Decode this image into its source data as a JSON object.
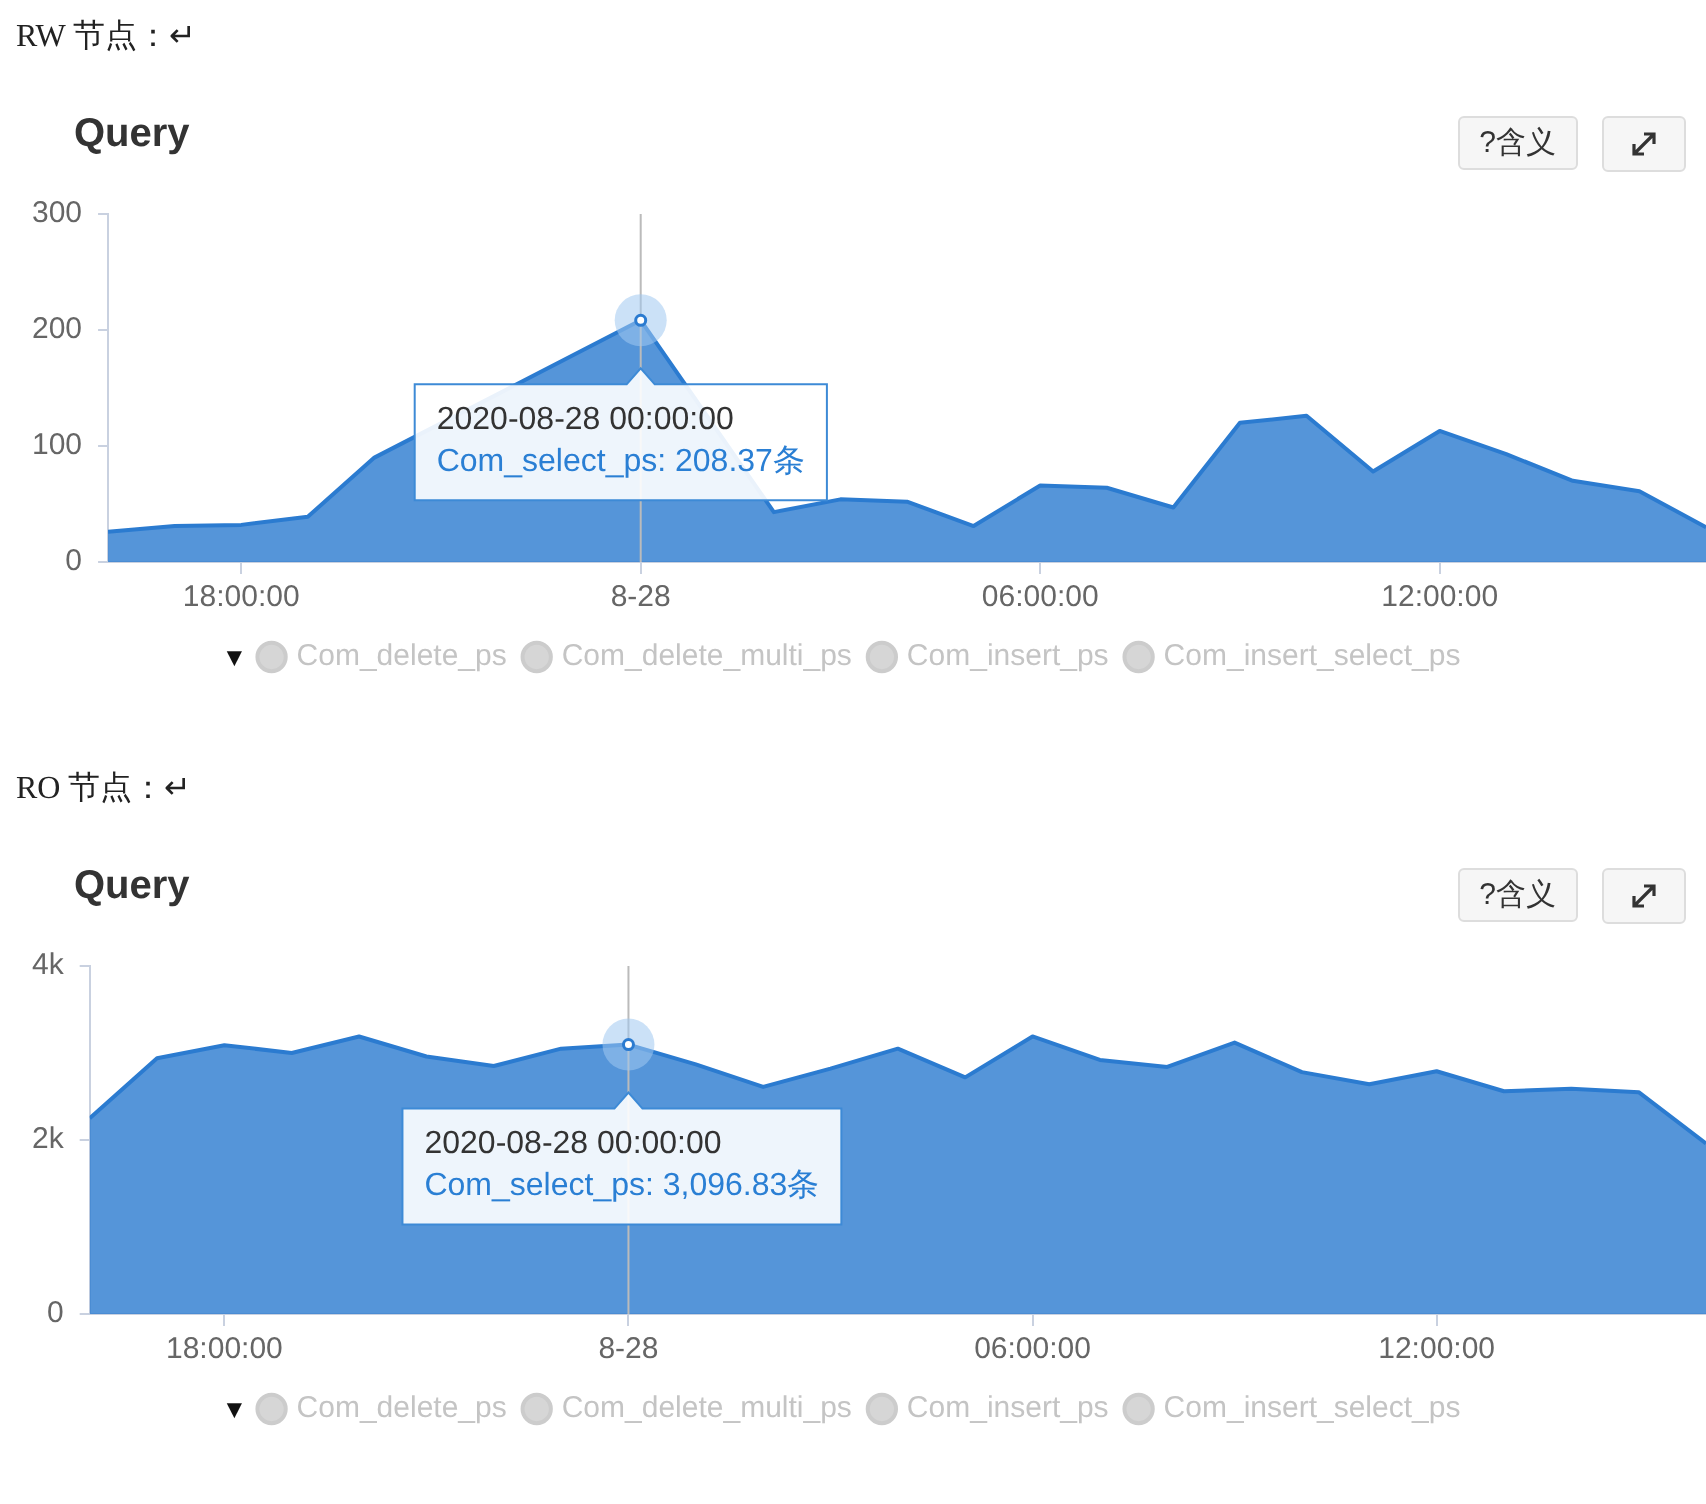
{
  "chart_data": [
    {
      "type": "area",
      "subtitle": "RW 节点：↵",
      "title": "Query",
      "legend": "bottom",
      "marker": "none",
      "grid": false,
      "x": [
        "2020-08-27T16:00",
        "2020-08-27T17:00",
        "2020-08-27T18:00",
        "2020-08-27T19:00",
        "2020-08-27T20:00",
        "2020-08-27T21:00",
        "2020-08-27T22:00",
        "2020-08-27T23:00",
        "2020-08-28T00:00",
        "2020-08-28T01:00",
        "2020-08-28T02:00",
        "2020-08-28T03:00",
        "2020-08-28T04:00",
        "2020-08-28T05:00",
        "2020-08-28T06:00",
        "2020-08-28T07:00",
        "2020-08-28T08:00",
        "2020-08-28T09:00",
        "2020-08-28T10:00",
        "2020-08-28T11:00",
        "2020-08-28T12:00",
        "2020-08-28T13:00",
        "2020-08-28T14:00",
        "2020-08-28T15:00",
        "2020-08-28T16:00"
      ],
      "xlim": [
        "2020-08-27T16:00",
        "2020-08-28T16:00"
      ],
      "xticks": [
        {
          "value": "2020-08-27T18:00",
          "label": "18:00:00"
        },
        {
          "value": "2020-08-28T00:00",
          "label": "8-28"
        },
        {
          "value": "2020-08-28T06:00",
          "label": "06:00:00"
        },
        {
          "value": "2020-08-28T12:00",
          "label": "12:00:00"
        }
      ],
      "ylim": [
        0,
        300
      ],
      "yticks": [
        0,
        100,
        200,
        300
      ],
      "series": [
        {
          "color": "#2b7bd0",
          "values": [
            26,
            31,
            32,
            39,
            90,
            null,
            null,
            null,
            208.37,
            null,
            43,
            54,
            52,
            31,
            66,
            64,
            47,
            120,
            126,
            78,
            113,
            93,
            70,
            61,
            30
          ]
        },
        {
          "name": "Com_delete_ps",
          "color": "#cccccc",
          "values": [
            null,
            null,
            null,
            null,
            null,
            null,
            null,
            null,
            null,
            null,
            null,
            null,
            null,
            null,
            null,
            null,
            null,
            null,
            null,
            null,
            null,
            null,
            null,
            null,
            null
          ]
        },
        {
          "name": "Com_delete_multi_ps",
          "color": "#cccccc",
          "values": [
            null,
            null,
            null,
            null,
            null,
            null,
            null,
            null,
            null,
            null,
            null,
            null,
            null,
            null,
            null,
            null,
            null,
            null,
            null,
            null,
            null,
            null,
            null,
            null,
            null
          ]
        },
        {
          "name": "Com_insert_ps",
          "color": "#cccccc",
          "values": [
            null,
            null,
            null,
            null,
            null,
            null,
            null,
            null,
            null,
            null,
            null,
            null,
            null,
            null,
            null,
            null,
            null,
            null,
            null,
            null,
            null,
            null,
            null,
            null,
            null
          ]
        },
        {
          "name": "Com_insert_select_ps",
          "color": "#cccccc",
          "values": [
            null,
            null,
            null,
            null,
            null,
            null,
            null,
            null,
            null,
            null,
            null,
            null,
            null,
            null,
            null,
            null,
            null,
            null,
            null,
            null,
            null,
            null,
            null,
            null,
            null
          ]
        }
      ],
      "ref_lines": [
        {
          "axis": "x",
          "value": "2020-08-28T00:00",
          "color": "#bbbbbb"
        }
      ],
      "annotations": [
        "?含义",
        "▼",
        {
          "text": "2020-08-28 00:00:00\nCom_select_ps: 208.37条",
          "x": "2020-08-28T00:00",
          "y": 208.37
        }
      ]
    },
    {
      "type": "area",
      "subtitle": "RO 节点：↵",
      "title": "Query",
      "legend": "bottom",
      "marker": "none",
      "grid": false,
      "x": [
        "2020-08-27T16:00",
        "2020-08-27T17:00",
        "2020-08-27T18:00",
        "2020-08-27T19:00",
        "2020-08-27T20:00",
        "2020-08-27T21:00",
        "2020-08-27T22:00",
        "2020-08-27T23:00",
        "2020-08-28T00:00",
        "2020-08-28T01:00",
        "2020-08-28T02:00",
        "2020-08-28T03:00",
        "2020-08-28T04:00",
        "2020-08-28T05:00",
        "2020-08-28T06:00",
        "2020-08-28T07:00",
        "2020-08-28T08:00",
        "2020-08-28T09:00",
        "2020-08-28T10:00",
        "2020-08-28T11:00",
        "2020-08-28T12:00",
        "2020-08-28T13:00",
        "2020-08-28T14:00",
        "2020-08-28T15:00",
        "2020-08-28T16:00"
      ],
      "xlim": [
        "2020-08-27T16:00",
        "2020-08-28T16:00"
      ],
      "xticks": [
        {
          "value": "2020-08-27T18:00",
          "label": "18:00:00"
        },
        {
          "value": "2020-08-28T00:00",
          "label": "8-28"
        },
        {
          "value": "2020-08-28T06:00",
          "label": "06:00:00"
        },
        {
          "value": "2020-08-28T12:00",
          "label": "12:00:00"
        }
      ],
      "ylim": [
        0,
        4000
      ],
      "yticks": [
        0,
        {
          "value": 2000,
          "label": "2k"
        },
        {
          "value": 4000,
          "label": "4k"
        }
      ],
      "series": [
        {
          "color": "#2b7bd0",
          "values": [
            2250,
            2940,
            3090,
            3000,
            3190,
            2960,
            2850,
            3050,
            3096.83,
            2870,
            2610,
            2820,
            3050,
            2720,
            3190,
            2920,
            2840,
            3120,
            2780,
            2640,
            2790,
            2560,
            2590,
            2550,
            1960
          ]
        },
        {
          "name": "Com_delete_ps",
          "color": "#cccccc",
          "values": [
            null,
            null,
            null,
            null,
            null,
            null,
            null,
            null,
            null,
            null,
            null,
            null,
            null,
            null,
            null,
            null,
            null,
            null,
            null,
            null,
            null,
            null,
            null,
            null,
            null
          ]
        },
        {
          "name": "Com_delete_multi_ps",
          "color": "#cccccc",
          "values": [
            null,
            null,
            null,
            null,
            null,
            null,
            null,
            null,
            null,
            null,
            null,
            null,
            null,
            null,
            null,
            null,
            null,
            null,
            null,
            null,
            null,
            null,
            null,
            null,
            null
          ]
        },
        {
          "name": "Com_insert_ps",
          "color": "#cccccc",
          "values": [
            null,
            null,
            null,
            null,
            null,
            null,
            null,
            null,
            null,
            null,
            null,
            null,
            null,
            null,
            null,
            null,
            null,
            null,
            null,
            null,
            null,
            null,
            null,
            null,
            null
          ]
        },
        {
          "name": "Com_insert_select_ps",
          "color": "#cccccc",
          "values": [
            null,
            null,
            null,
            null,
            null,
            null,
            null,
            null,
            null,
            null,
            null,
            null,
            null,
            null,
            null,
            null,
            null,
            null,
            null,
            null,
            null,
            null,
            null,
            null,
            null
          ]
        }
      ],
      "ref_lines": [
        {
          "axis": "x",
          "value": "2020-08-28T00:00",
          "color": "#bbbbbb"
        }
      ],
      "annotations": [
        "?含义",
        "▼",
        {
          "text": "2020-08-28 00:00:00\nCom_select_ps: 3,096.83条",
          "x": "2020-08-28T00:00",
          "y": 3096.83
        }
      ]
    }
  ]
}
